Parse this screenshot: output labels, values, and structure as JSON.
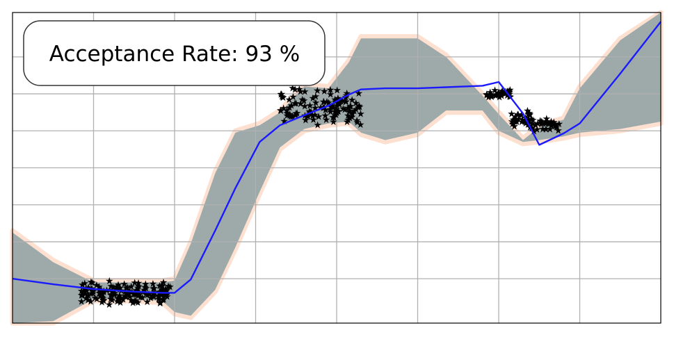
{
  "chart_data": {
    "type": "scatter",
    "title": "",
    "xlabel": "",
    "ylabel": "",
    "xlim": [
      0,
      8
    ],
    "ylim": [
      -4.2,
      4.2
    ],
    "xticks": [
      1,
      2,
      3,
      4,
      5,
      6,
      7
    ],
    "yticks": [
      -3,
      -2,
      -1,
      0,
      1,
      2,
      3
    ],
    "grid": true,
    "annotation": "Acceptance Rate: 93 %",
    "colors": {
      "mean": "#1a1aff",
      "band_inner": "#9eaaaa",
      "band_outer": "#fde0d0",
      "points": "#000000",
      "grid": "#b0b0b0"
    },
    "series": [
      {
        "type": "band",
        "role": "outer-band",
        "x": [
          0,
          0.5,
          1,
          1.5,
          1.85,
          2.0,
          2.2,
          2.5,
          2.75,
          3.05,
          3.3,
          3.6,
          3.9,
          4.15,
          4.3,
          4.6,
          5.0,
          5.35,
          5.8,
          6.0,
          6.3,
          6.5,
          6.8,
          7.0,
          7.5,
          8.0
        ],
        "upper": [
          -1.7,
          -2.5,
          -3.05,
          -3.05,
          -3.05,
          -3.0,
          -2.0,
          -0.1,
          1.0,
          1.2,
          1.55,
          2.25,
          2.2,
          2.9,
          3.55,
          3.55,
          3.55,
          3.05,
          2.0,
          1.5,
          0.8,
          1.15,
          1.35,
          2.2,
          3.5,
          4.5
        ],
        "lower": [
          -4.4,
          -4.2,
          -3.6,
          -3.6,
          -3.65,
          -3.95,
          -4.05,
          -3.35,
          -2.2,
          -0.7,
          0.5,
          1.0,
          1.15,
          1.2,
          0.9,
          0.7,
          0.9,
          1.5,
          1.5,
          0.95,
          0.65,
          0.7,
          0.8,
          0.9,
          1.0,
          1.2
        ]
      },
      {
        "type": "band",
        "role": "inner-band",
        "x": [
          0,
          0.5,
          1,
          1.5,
          1.85,
          2.0,
          2.2,
          2.5,
          2.75,
          3.05,
          3.3,
          3.6,
          3.9,
          4.15,
          4.3,
          4.6,
          5.0,
          5.35,
          5.8,
          6.0,
          6.3,
          6.5,
          6.8,
          7.0,
          7.5,
          8.0
        ],
        "upper": [
          -1.75,
          -2.55,
          -3.1,
          -3.1,
          -3.1,
          -3.05,
          -2.05,
          -0.15,
          0.95,
          1.15,
          1.5,
          2.2,
          2.15,
          2.85,
          3.5,
          3.5,
          3.5,
          3.0,
          1.95,
          1.45,
          0.75,
          1.1,
          1.3,
          2.15,
          3.45,
          4.45
        ],
        "lower": [
          -4.35,
          -4.15,
          -3.55,
          -3.55,
          -3.6,
          -3.9,
          -4.0,
          -3.3,
          -2.15,
          -0.65,
          0.55,
          1.05,
          1.2,
          1.25,
          0.95,
          0.75,
          0.95,
          1.55,
          1.55,
          1.0,
          0.7,
          0.75,
          0.85,
          0.95,
          1.05,
          1.25
        ]
      },
      {
        "type": "line",
        "role": "mean",
        "x": [
          0,
          0.5,
          1,
          1.5,
          1.85,
          2.0,
          2.2,
          2.5,
          2.75,
          3.05,
          3.3,
          3.6,
          3.9,
          4.15,
          4.3,
          4.6,
          5.0,
          5.35,
          5.8,
          6.0,
          6.3,
          6.5,
          6.8,
          7.0,
          7.5,
          8.0
        ],
        "y": [
          -3.0,
          -3.15,
          -3.28,
          -3.35,
          -3.38,
          -3.38,
          -3.02,
          -1.7,
          -0.55,
          0.7,
          1.15,
          1.42,
          1.68,
          1.98,
          2.12,
          2.15,
          2.15,
          2.18,
          2.22,
          2.32,
          1.47,
          0.62,
          0.93,
          1.2,
          2.55,
          3.95
        ]
      },
      {
        "type": "scatter",
        "role": "observations",
        "clusters": [
          {
            "x": [
              0.85,
              1.95
            ],
            "y": [
              -3.05,
              -3.7
            ],
            "count": 150
          },
          {
            "x": [
              3.3,
              4.3
            ],
            "y": [
              1.1,
              2.2
            ],
            "count": 120
          },
          {
            "x": [
              5.85,
              6.15
            ],
            "y": [
              1.9,
              2.15
            ],
            "count": 35
          },
          {
            "x": [
              6.15,
              6.4
            ],
            "y": [
              1.05,
              1.6
            ],
            "count": 35
          },
          {
            "x": [
              6.4,
              6.75
            ],
            "y": [
              0.95,
              1.35
            ],
            "count": 35
          }
        ]
      }
    ]
  }
}
